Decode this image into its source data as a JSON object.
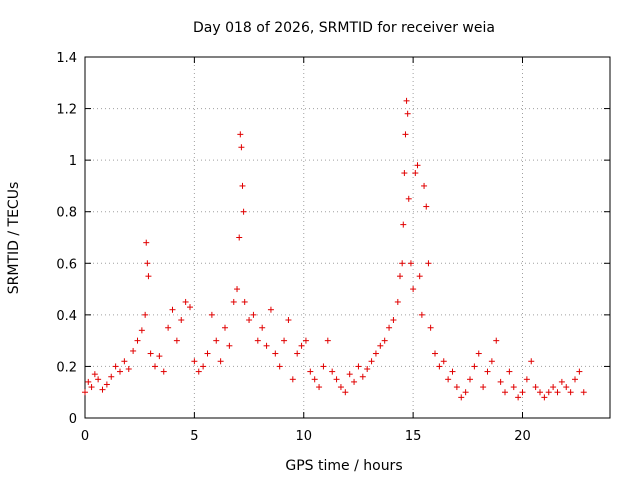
{
  "chart_data": {
    "type": "scatter",
    "title": "Day 018 of 2026, SRMTID for receiver weia",
    "xlabel": "GPS time / hours",
    "ylabel": "SRMTID / TECUs",
    "xlim": [
      0,
      24
    ],
    "ylim": [
      0,
      1.4
    ],
    "xticks": [
      0,
      5,
      10,
      15,
      20
    ],
    "xtick_labels": [
      "0",
      "5",
      "10",
      "15",
      "20"
    ],
    "yticks": [
      0,
      0.2,
      0.4,
      0.6,
      0.8,
      1,
      1.2,
      1.4
    ],
    "ytick_labels": [
      "0",
      "0.2",
      "0.4",
      "0.6",
      "0.8",
      "1",
      "1.2",
      "1.4"
    ],
    "grid": true,
    "marker": "+",
    "marker_color": "#e00000",
    "series": [
      {
        "name": "SRMTID",
        "x": [
          0.0,
          0.15,
          0.3,
          0.45,
          0.6,
          0.8,
          1.0,
          1.2,
          1.4,
          1.6,
          1.8,
          2.0,
          2.2,
          2.4,
          2.6,
          2.75,
          2.8,
          2.85,
          2.9,
          3.0,
          3.2,
          3.4,
          3.6,
          3.8,
          4.0,
          4.2,
          4.4,
          4.6,
          4.8,
          5.0,
          5.2,
          5.4,
          5.6,
          5.8,
          6.0,
          6.2,
          6.4,
          6.6,
          6.8,
          6.95,
          7.05,
          7.1,
          7.15,
          7.2,
          7.25,
          7.3,
          7.5,
          7.7,
          7.9,
          8.1,
          8.3,
          8.5,
          8.7,
          8.9,
          9.1,
          9.3,
          9.5,
          9.7,
          9.9,
          10.1,
          10.3,
          10.5,
          10.7,
          10.9,
          11.1,
          11.3,
          11.5,
          11.7,
          11.9,
          12.1,
          12.3,
          12.5,
          12.7,
          12.9,
          13.1,
          13.3,
          13.5,
          13.7,
          13.9,
          14.1,
          14.3,
          14.4,
          14.5,
          14.55,
          14.6,
          14.65,
          14.7,
          14.75,
          14.8,
          14.9,
          15.0,
          15.1,
          15.2,
          15.3,
          15.4,
          15.5,
          15.6,
          15.7,
          15.8,
          16.0,
          16.2,
          16.4,
          16.6,
          16.8,
          17.0,
          17.2,
          17.4,
          17.6,
          17.8,
          18.0,
          18.2,
          18.4,
          18.6,
          18.8,
          19.0,
          19.2,
          19.4,
          19.6,
          19.8,
          20.0,
          20.2,
          20.4,
          20.6,
          20.8,
          21.0,
          21.2,
          21.4,
          21.6,
          21.8,
          22.0,
          22.2,
          22.4,
          22.6,
          22.8
        ],
        "y": [
          0.1,
          0.14,
          0.12,
          0.17,
          0.15,
          0.11,
          0.13,
          0.16,
          0.2,
          0.18,
          0.22,
          0.19,
          0.26,
          0.3,
          0.34,
          0.4,
          0.68,
          0.6,
          0.55,
          0.25,
          0.2,
          0.24,
          0.18,
          0.35,
          0.42,
          0.3,
          0.38,
          0.45,
          0.43,
          0.22,
          0.18,
          0.2,
          0.25,
          0.4,
          0.3,
          0.22,
          0.35,
          0.28,
          0.45,
          0.5,
          0.7,
          1.1,
          1.05,
          0.9,
          0.8,
          0.45,
          0.38,
          0.4,
          0.3,
          0.35,
          0.28,
          0.42,
          0.25,
          0.2,
          0.3,
          0.38,
          0.15,
          0.25,
          0.28,
          0.3,
          0.18,
          0.15,
          0.12,
          0.2,
          0.3,
          0.18,
          0.15,
          0.12,
          0.1,
          0.17,
          0.14,
          0.2,
          0.16,
          0.19,
          0.22,
          0.25,
          0.28,
          0.3,
          0.35,
          0.38,
          0.45,
          0.55,
          0.6,
          0.75,
          0.95,
          1.1,
          1.23,
          1.18,
          0.85,
          0.6,
          0.5,
          0.95,
          0.98,
          0.55,
          0.4,
          0.9,
          0.82,
          0.6,
          0.35,
          0.25,
          0.2,
          0.22,
          0.15,
          0.18,
          0.12,
          0.08,
          0.1,
          0.15,
          0.2,
          0.25,
          0.12,
          0.18,
          0.22,
          0.3,
          0.14,
          0.1,
          0.18,
          0.12,
          0.08,
          0.1,
          0.15,
          0.22,
          0.12,
          0.1,
          0.08,
          0.1,
          0.12,
          0.1,
          0.14,
          0.12,
          0.1,
          0.15,
          0.18,
          0.1
        ]
      }
    ]
  }
}
